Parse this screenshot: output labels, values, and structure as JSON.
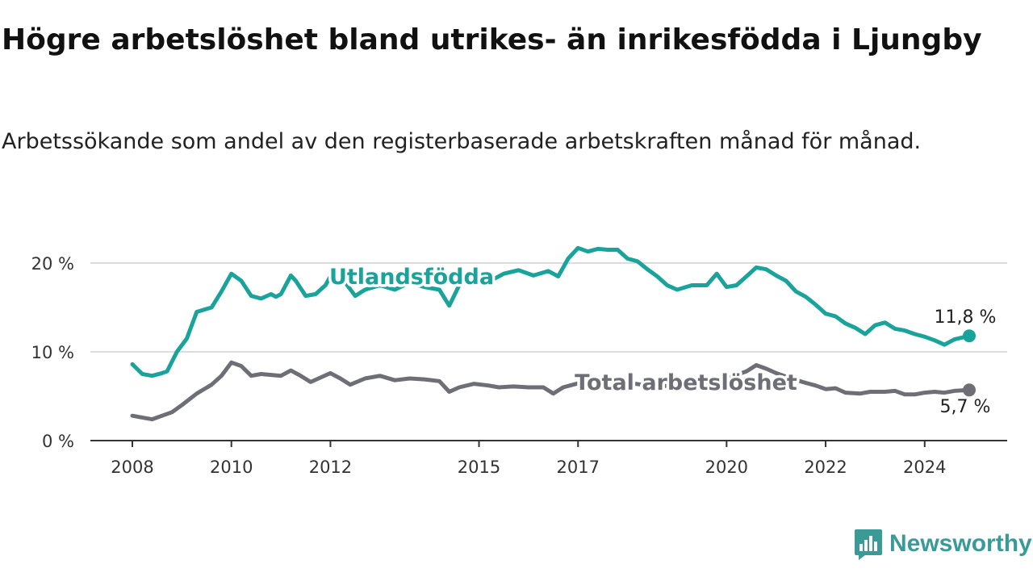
{
  "header": {
    "title": "Högre arbetslöshet bland utrikes- än inrikesfödda i Ljungby",
    "subtitle": "Arbetssökande som andel av den registerbaserade arbetskraften månad för månad."
  },
  "brand": {
    "name": "Newsworthy",
    "color": "#3a9a97"
  },
  "chart_data": {
    "type": "line",
    "x_range": [
      2008.0,
      2024.9
    ],
    "ylim": [
      0,
      20
    ],
    "y_ticks": [
      0,
      10,
      20
    ],
    "y_tick_labels": [
      "0 %",
      "10 %",
      "20 %"
    ],
    "x_ticks": [
      2008,
      2010,
      2012,
      2015,
      2017,
      2020,
      2022,
      2024
    ],
    "x_tick_labels": [
      "2008",
      "2010",
      "2012",
      "2015",
      "2017",
      "2020",
      "2022",
      "2024"
    ],
    "grid": true,
    "series": [
      {
        "name": "Utlandsfödda",
        "color": "#1aa39a",
        "end_label": "11,8 %",
        "points": [
          [
            2008.0,
            8.6
          ],
          [
            2008.2,
            7.5
          ],
          [
            2008.4,
            7.3
          ],
          [
            2008.6,
            7.6
          ],
          [
            2008.7,
            7.8
          ],
          [
            2008.9,
            10.0
          ],
          [
            2009.1,
            11.5
          ],
          [
            2009.3,
            14.5
          ],
          [
            2009.6,
            15.0
          ],
          [
            2009.8,
            16.8
          ],
          [
            2010.0,
            18.8
          ],
          [
            2010.2,
            18.0
          ],
          [
            2010.4,
            16.3
          ],
          [
            2010.6,
            16.0
          ],
          [
            2010.8,
            16.5
          ],
          [
            2010.9,
            16.2
          ],
          [
            2011.0,
            16.5
          ],
          [
            2011.2,
            18.6
          ],
          [
            2011.3,
            18.0
          ],
          [
            2011.5,
            16.3
          ],
          [
            2011.7,
            16.5
          ],
          [
            2011.9,
            17.5
          ],
          [
            2012.0,
            18.5
          ],
          [
            2012.3,
            17.8
          ],
          [
            2012.5,
            16.3
          ],
          [
            2012.7,
            17.0
          ],
          [
            2013.0,
            17.5
          ],
          [
            2013.3,
            17.0
          ],
          [
            2013.6,
            17.8
          ],
          [
            2013.9,
            17.3
          ],
          [
            2014.2,
            17.0
          ],
          [
            2014.4,
            15.2
          ],
          [
            2014.6,
            17.5
          ],
          [
            2014.9,
            18.2
          ],
          [
            2015.2,
            17.9
          ],
          [
            2015.5,
            18.8
          ],
          [
            2015.8,
            19.2
          ],
          [
            2016.1,
            18.6
          ],
          [
            2016.4,
            19.1
          ],
          [
            2016.6,
            18.5
          ],
          [
            2016.8,
            20.5
          ],
          [
            2017.0,
            21.7
          ],
          [
            2017.2,
            21.3
          ],
          [
            2017.4,
            21.6
          ],
          [
            2017.6,
            21.5
          ],
          [
            2017.8,
            21.5
          ],
          [
            2018.0,
            20.5
          ],
          [
            2018.2,
            20.2
          ],
          [
            2018.4,
            19.3
          ],
          [
            2018.6,
            18.5
          ],
          [
            2018.8,
            17.5
          ],
          [
            2019.0,
            17.0
          ],
          [
            2019.3,
            17.5
          ],
          [
            2019.6,
            17.5
          ],
          [
            2019.8,
            18.8
          ],
          [
            2020.0,
            17.3
          ],
          [
            2020.2,
            17.5
          ],
          [
            2020.4,
            18.5
          ],
          [
            2020.6,
            19.5
          ],
          [
            2020.8,
            19.3
          ],
          [
            2021.0,
            18.6
          ],
          [
            2021.2,
            18.0
          ],
          [
            2021.4,
            16.8
          ],
          [
            2021.6,
            16.2
          ],
          [
            2021.8,
            15.3
          ],
          [
            2022.0,
            14.3
          ],
          [
            2022.2,
            14.0
          ],
          [
            2022.4,
            13.2
          ],
          [
            2022.6,
            12.7
          ],
          [
            2022.8,
            12.0
          ],
          [
            2023.0,
            13.0
          ],
          [
            2023.2,
            13.3
          ],
          [
            2023.4,
            12.6
          ],
          [
            2023.6,
            12.4
          ],
          [
            2023.8,
            12.0
          ],
          [
            2024.0,
            11.7
          ],
          [
            2024.2,
            11.3
          ],
          [
            2024.4,
            10.8
          ],
          [
            2024.6,
            11.4
          ],
          [
            2024.9,
            11.8
          ]
        ]
      },
      {
        "name": "Total arbetslöshet",
        "color": "#6e6e76",
        "end_label": "5,7 %",
        "points": [
          [
            2008.0,
            2.8
          ],
          [
            2008.2,
            2.6
          ],
          [
            2008.4,
            2.4
          ],
          [
            2008.6,
            2.8
          ],
          [
            2008.8,
            3.2
          ],
          [
            2009.0,
            4.0
          ],
          [
            2009.3,
            5.3
          ],
          [
            2009.6,
            6.3
          ],
          [
            2009.8,
            7.3
          ],
          [
            2010.0,
            8.8
          ],
          [
            2010.2,
            8.4
          ],
          [
            2010.4,
            7.3
          ],
          [
            2010.6,
            7.5
          ],
          [
            2010.8,
            7.4
          ],
          [
            2011.0,
            7.3
          ],
          [
            2011.2,
            7.9
          ],
          [
            2011.4,
            7.3
          ],
          [
            2011.6,
            6.6
          ],
          [
            2011.8,
            7.1
          ],
          [
            2012.0,
            7.6
          ],
          [
            2012.2,
            7.0
          ],
          [
            2012.4,
            6.3
          ],
          [
            2012.7,
            7.0
          ],
          [
            2013.0,
            7.3
          ],
          [
            2013.3,
            6.8
          ],
          [
            2013.6,
            7.0
          ],
          [
            2013.9,
            6.9
          ],
          [
            2014.2,
            6.7
          ],
          [
            2014.4,
            5.5
          ],
          [
            2014.6,
            6.0
          ],
          [
            2014.9,
            6.4
          ],
          [
            2015.2,
            6.2
          ],
          [
            2015.4,
            6.0
          ],
          [
            2015.7,
            6.1
          ],
          [
            2016.0,
            6.0
          ],
          [
            2016.3,
            6.0
          ],
          [
            2016.5,
            5.3
          ],
          [
            2016.7,
            6.0
          ],
          [
            2016.9,
            6.3
          ],
          [
            2017.1,
            6.6
          ],
          [
            2017.4,
            6.8
          ],
          [
            2017.7,
            6.7
          ],
          [
            2018.0,
            6.5
          ],
          [
            2018.3,
            6.3
          ],
          [
            2018.6,
            6.1
          ],
          [
            2018.9,
            6.2
          ],
          [
            2019.2,
            6.3
          ],
          [
            2019.5,
            6.4
          ],
          [
            2019.8,
            6.5
          ],
          [
            2020.1,
            7.2
          ],
          [
            2020.4,
            7.8
          ],
          [
            2020.6,
            8.5
          ],
          [
            2020.8,
            8.1
          ],
          [
            2021.0,
            7.6
          ],
          [
            2021.3,
            7.0
          ],
          [
            2021.6,
            6.5
          ],
          [
            2021.8,
            6.2
          ],
          [
            2022.0,
            5.8
          ],
          [
            2022.2,
            5.9
          ],
          [
            2022.4,
            5.4
          ],
          [
            2022.7,
            5.3
          ],
          [
            2022.9,
            5.5
          ],
          [
            2023.2,
            5.5
          ],
          [
            2023.4,
            5.6
          ],
          [
            2023.6,
            5.2
          ],
          [
            2023.8,
            5.2
          ],
          [
            2024.0,
            5.4
          ],
          [
            2024.2,
            5.5
          ],
          [
            2024.4,
            5.4
          ],
          [
            2024.6,
            5.6
          ],
          [
            2024.9,
            5.7
          ]
        ]
      }
    ]
  }
}
